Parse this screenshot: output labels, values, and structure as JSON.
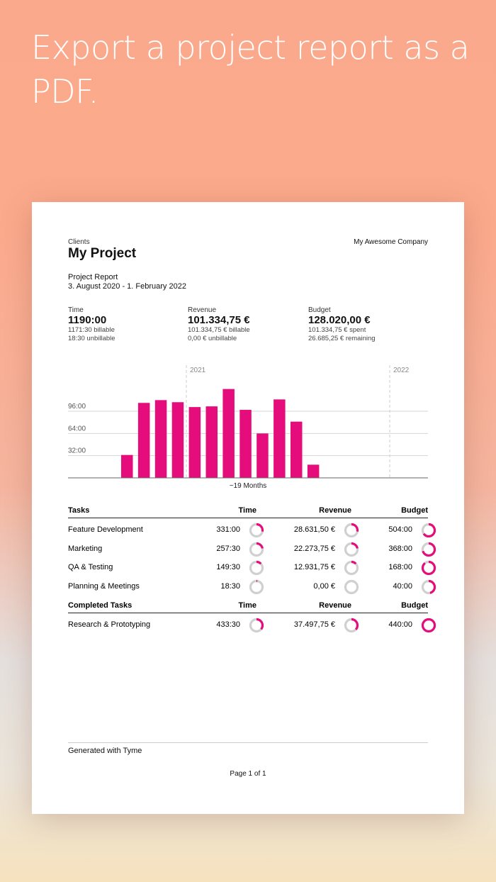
{
  "headline": "Export a project report as a PDF.",
  "report": {
    "client": "Clients",
    "project": "My Project",
    "company": "My Awesome Company",
    "subtitle": "Project Report",
    "date_range": "3. August 2020 - 1. February 2022",
    "summary": [
      {
        "label": "Time",
        "value": "1190:00",
        "line1": "1171:30 billable",
        "line2": "18:30 unbillable"
      },
      {
        "label": "Revenue",
        "value": "101.334,75 €",
        "line1": "101.334,75 € billable",
        "line2": "0,00 € unbillable"
      },
      {
        "label": "Budget",
        "value": "128.020,00 €",
        "line1": "101.334,75 € spent",
        "line2": "26.685,25 € remaining"
      }
    ],
    "footer": "Generated with Tyme",
    "page": "Page 1 of 1"
  },
  "colors": {
    "accent": "#e50d7c",
    "ring_bg": "#d0d0d0"
  },
  "chart_data": {
    "type": "bar",
    "xlabel": "~19 Months",
    "year_markers": [
      "2021",
      "2022"
    ],
    "ytick_labels": [
      "32:00",
      "64:00",
      "96:00"
    ],
    "yticks": [
      32,
      64,
      96
    ],
    "values": [
      33,
      108,
      112,
      109,
      102,
      103,
      128,
      98,
      64,
      113,
      81,
      19
    ],
    "grid": true
  },
  "tables": [
    {
      "headers": [
        "Tasks",
        "Time",
        "Revenue",
        "Budget"
      ],
      "rows": [
        {
          "name": "Feature Development",
          "time": "331:00",
          "revenue": "28.631,50 €",
          "budget": "504:00",
          "f": [
            0.28,
            0.28,
            0.65
          ]
        },
        {
          "name": "Marketing",
          "time": "257:30",
          "revenue": "22.273,75 €",
          "budget": "368:00",
          "f": [
            0.22,
            0.22,
            0.7
          ]
        },
        {
          "name": "QA & Testing",
          "time": "149:30",
          "revenue": "12.931,75 €",
          "budget": "168:00",
          "f": [
            0.13,
            0.13,
            0.89
          ]
        },
        {
          "name": "Planning & Meetings",
          "time": "18:30",
          "revenue": "0,00 €",
          "budget": "40:00",
          "f": [
            0.02,
            0,
            0.46
          ]
        }
      ]
    },
    {
      "headers": [
        "Completed Tasks",
        "Time",
        "Revenue",
        "Budget"
      ],
      "rows": [
        {
          "name": "Research & Prototyping",
          "time": "433:30",
          "revenue": "37.497,75 €",
          "budget": "440:00",
          "f": [
            0.36,
            0.37,
            1.0
          ]
        }
      ]
    }
  ]
}
